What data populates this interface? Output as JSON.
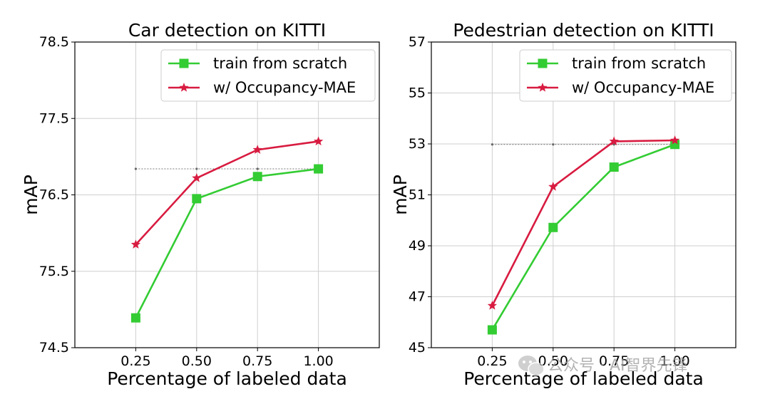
{
  "chart_data": [
    {
      "type": "line",
      "title": "Car detection on KITTI",
      "xlabel": "Percentage of labeled data",
      "ylabel": "mAP",
      "x": [
        0.25,
        0.5,
        0.75,
        1.0
      ],
      "x_ticks": [
        "0.25",
        "0.50",
        "0.75",
        "1.00"
      ],
      "xlim": [
        0.0,
        1.25
      ],
      "ylim": [
        74.5,
        78.5
      ],
      "y_ticks": [
        "74.5",
        "75.5",
        "76.5",
        "77.5",
        "78.5"
      ],
      "grid": true,
      "legend_position": "top-right",
      "reference_line": 76.84,
      "series": [
        {
          "name": "train from scratch",
          "values": [
            74.89,
            76.45,
            76.74,
            76.84
          ],
          "color": "#33cc33",
          "marker": "square"
        },
        {
          "name": "w/ Occupancy-MAE",
          "values": [
            75.85,
            76.72,
            77.09,
            77.2
          ],
          "color": "#d81b40",
          "marker": "star"
        }
      ]
    },
    {
      "type": "line",
      "title": "Pedestrian detection on KITTI",
      "xlabel": "Percentage of labeled data",
      "ylabel": "mAP",
      "x": [
        0.25,
        0.5,
        0.75,
        1.0
      ],
      "x_ticks": [
        "0.25",
        "0.50",
        "0.75",
        "1.00"
      ],
      "xlim": [
        0.0,
        1.25
      ],
      "ylim": [
        45,
        57
      ],
      "y_ticks": [
        "45",
        "47",
        "49",
        "51",
        "53",
        "55",
        "57"
      ],
      "grid": true,
      "legend_position": "top-right",
      "reference_line": 52.98,
      "series": [
        {
          "name": "train from scratch",
          "values": [
            45.7,
            49.72,
            52.09,
            52.98
          ],
          "color": "#33cc33",
          "marker": "square"
        },
        {
          "name": "w/ Occupancy-MAE",
          "values": [
            46.65,
            51.32,
            53.1,
            53.14
          ],
          "color": "#d81b40",
          "marker": "star"
        }
      ]
    }
  ],
  "watermark": "公众号 · AI智界先锋"
}
